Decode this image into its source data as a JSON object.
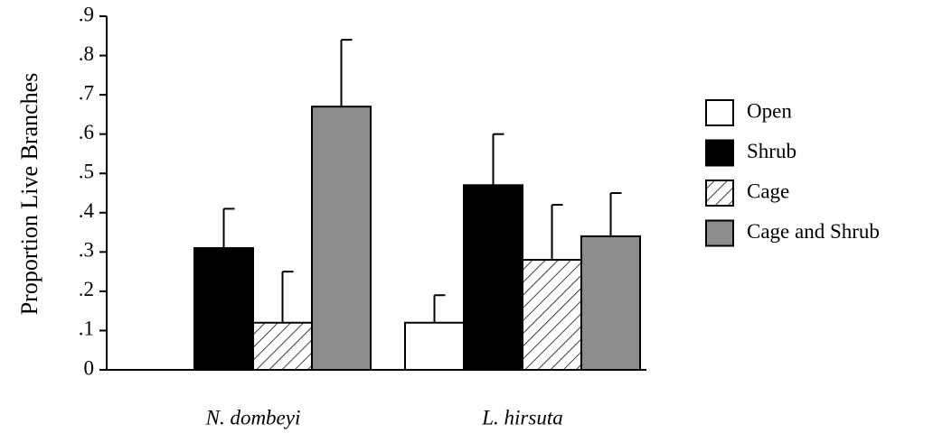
{
  "chart_data": {
    "type": "bar",
    "y_label": "Proportion Live Branches",
    "categories": [
      "N. dombeyi",
      "L. hirsuta"
    ],
    "series": [
      {
        "name": "Open",
        "color": "#ffffff",
        "values": [
          0,
          0.12
        ],
        "errors": [
          0,
          0.07
        ]
      },
      {
        "name": "Shrub",
        "color": "#000000",
        "values": [
          0.31,
          0.47
        ],
        "errors": [
          0.1,
          0.13
        ]
      },
      {
        "name": "Cage",
        "color": "#ffffff",
        "pattern": "hatch",
        "values": [
          0.12,
          0.28
        ],
        "errors": [
          0.13,
          0.14
        ]
      },
      {
        "name": "Cage and Shrub",
        "color": "#8c8c8c",
        "values": [
          0.67,
          0.34
        ],
        "errors": [
          0.17,
          0.11
        ]
      }
    ],
    "ylim": [
      0,
      0.9
    ],
    "yticks": [
      0,
      {
        "value": 0.1,
        "label": ".1"
      },
      {
        "value": 0.2,
        "label": ".2"
      },
      {
        "value": 0.3,
        "label": ".3"
      },
      {
        "value": 0.4,
        "label": ".4"
      },
      {
        "value": 0.5,
        "label": ".5"
      },
      {
        "value": 0.6,
        "label": ".6"
      },
      {
        "value": 0.7,
        "label": ".7"
      },
      {
        "value": 0.8,
        "label": ".8"
      },
      {
        "value": 0.9,
        "label": ".9"
      }
    ],
    "legend": "right"
  }
}
